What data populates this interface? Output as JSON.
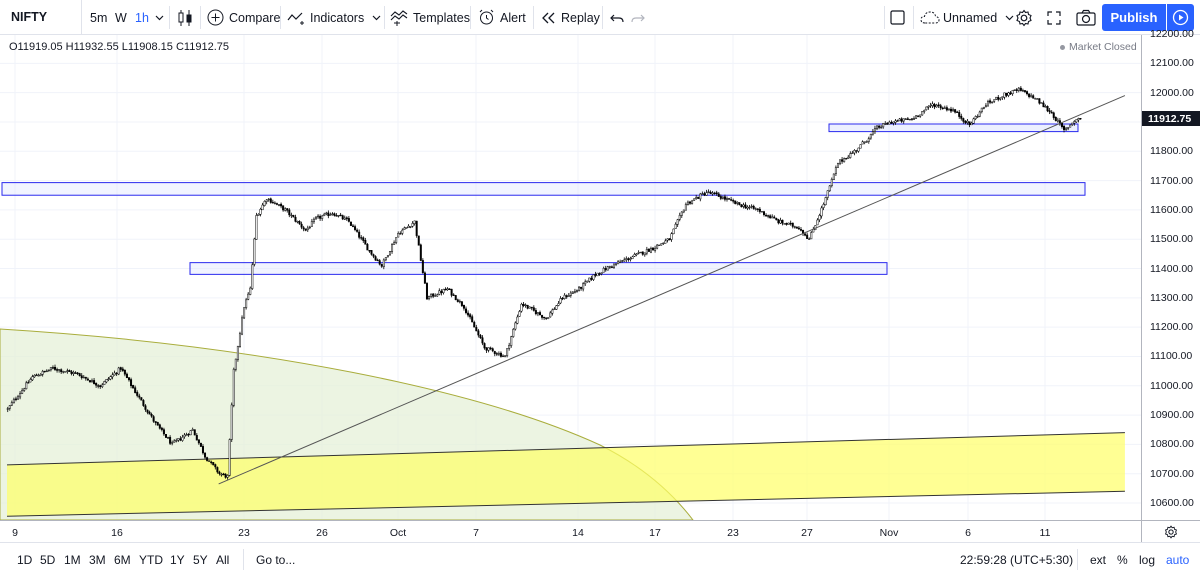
{
  "toolbar": {
    "symbol": "NIFTY",
    "intervals": [
      "5m",
      "W",
      "1h"
    ],
    "active_interval": "1h",
    "compare_label": "Compare",
    "indicators_label": "Indicators",
    "templates_label": "Templates",
    "alert_label": "Alert",
    "replay_label": "Replay",
    "layout_name": "Unnamed",
    "publish_label": "Publish"
  },
  "legend": {
    "ohlc": "O11919.05 H11932.55 L11908.15 C11912.75",
    "market_status": "Market Closed"
  },
  "price_axis": {
    "labels": [
      "12200.00",
      "12100.00",
      "12000.00",
      "11900.00",
      "11800.00",
      "11700.00",
      "11600.00",
      "11500.00",
      "11400.00",
      "11300.00",
      "11200.00",
      "11100.00",
      "11000.00",
      "10900.00",
      "10800.00",
      "10700.00",
      "10600.00"
    ],
    "last_price": "11912.75"
  },
  "time_axis": {
    "labels": [
      "9",
      "16",
      "23",
      "26",
      "Oct",
      "7",
      "14",
      "17",
      "23",
      "27",
      "Nov",
      "6",
      "11"
    ]
  },
  "bottom_bar": {
    "ranges": [
      "1D",
      "5D",
      "1M",
      "3M",
      "6M",
      "YTD",
      "1Y",
      "5Y",
      "All"
    ],
    "goto_label": "Go to...",
    "clock": "22:59:28 (UTC+5:30)",
    "ext_label": "ext",
    "percent_label": "%",
    "log_label": "log",
    "auto_label": "auto"
  },
  "chart_data": {
    "type": "candlestick",
    "symbol": "NIFTY",
    "interval": "1h",
    "y_range": [
      10555,
      12220
    ],
    "last_close": 11912.75,
    "path_anchors": [
      [
        0,
        10920
      ],
      [
        3,
        10950
      ],
      [
        12,
        11030
      ],
      [
        22,
        11060
      ],
      [
        34,
        11040
      ],
      [
        45,
        11000
      ],
      [
        55,
        11060
      ],
      [
        62,
        10980
      ],
      [
        72,
        10870
      ],
      [
        80,
        10800
      ],
      [
        90,
        10850
      ],
      [
        96,
        10760
      ],
      [
        103,
        10700
      ],
      [
        107,
        10690
      ],
      [
        110,
        11050
      ],
      [
        115,
        11270
      ],
      [
        118,
        11330
      ],
      [
        121,
        11580
      ],
      [
        126,
        11640
      ],
      [
        135,
        11600
      ],
      [
        145,
        11530
      ],
      [
        150,
        11570
      ],
      [
        158,
        11590
      ],
      [
        166,
        11560
      ],
      [
        176,
        11460
      ],
      [
        182,
        11410
      ],
      [
        190,
        11520
      ],
      [
        198,
        11560
      ],
      [
        204,
        11300
      ],
      [
        214,
        11330
      ],
      [
        222,
        11270
      ],
      [
        232,
        11130
      ],
      [
        242,
        11100
      ],
      [
        250,
        11280
      ],
      [
        262,
        11230
      ],
      [
        270,
        11300
      ],
      [
        278,
        11330
      ],
      [
        286,
        11380
      ],
      [
        294,
        11410
      ],
      [
        304,
        11440
      ],
      [
        314,
        11470
      ],
      [
        322,
        11500
      ],
      [
        330,
        11620
      ],
      [
        340,
        11660
      ],
      [
        345,
        11650
      ],
      [
        355,
        11620
      ],
      [
        365,
        11600
      ],
      [
        375,
        11560
      ],
      [
        385,
        11540
      ],
      [
        390,
        11500
      ],
      [
        397,
        11620
      ],
      [
        404,
        11760
      ],
      [
        412,
        11800
      ],
      [
        418,
        11840
      ],
      [
        423,
        11880
      ],
      [
        430,
        11900
      ],
      [
        440,
        11910
      ],
      [
        450,
        11960
      ],
      [
        460,
        11940
      ],
      [
        468,
        11890
      ],
      [
        476,
        11960
      ],
      [
        484,
        11990
      ],
      [
        492,
        12010
      ],
      [
        500,
        11980
      ],
      [
        508,
        11930
      ],
      [
        514,
        11870
      ],
      [
        519,
        11905
      ],
      [
        522,
        11913
      ]
    ],
    "candle_count": 523,
    "annotations": [
      {
        "type": "rectangle",
        "price_from": 11867,
        "price_to": 11893
      },
      {
        "type": "rectangle",
        "price_from": 11650,
        "price_to": 11693
      },
      {
        "type": "rectangle",
        "price_from": 11380,
        "price_to": 11420
      },
      {
        "type": "trendline",
        "from": [
          103,
          10665
        ],
        "to": [
          544,
          11990
        ]
      },
      {
        "type": "channel",
        "upper": [
          [
            0,
            10730
          ],
          [
            544,
            10840
          ]
        ],
        "lower": [
          [
            0,
            10555
          ],
          [
            544,
            10640
          ]
        ],
        "fill": "#ffff66"
      },
      {
        "type": "fib_circle",
        "fill": "#e6f0d8"
      }
    ]
  }
}
